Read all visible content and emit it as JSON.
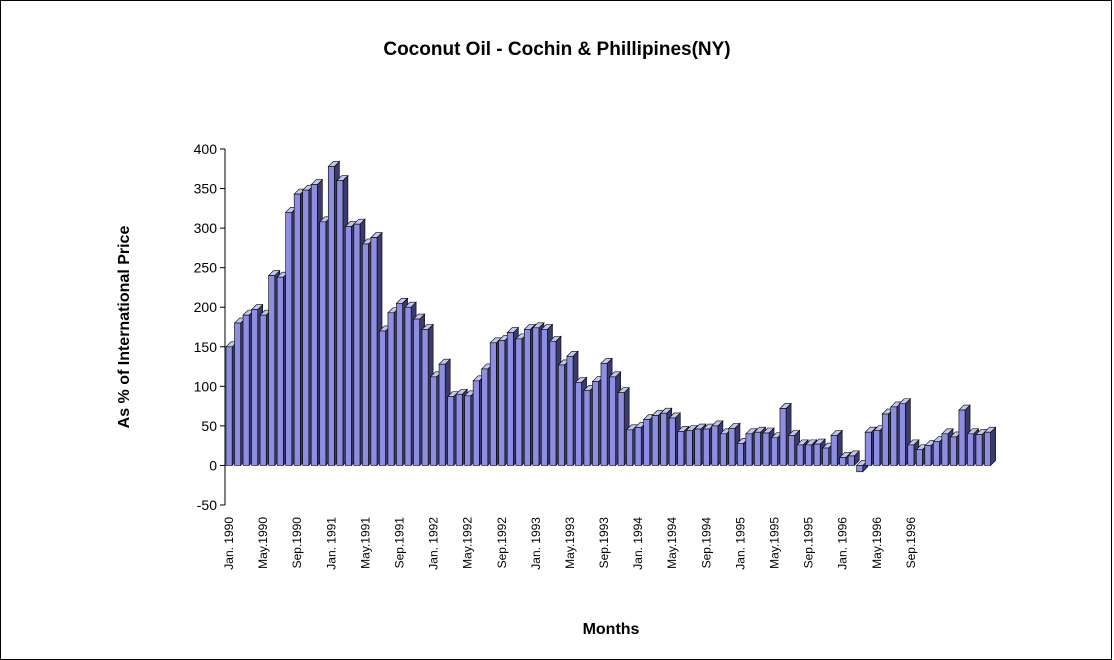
{
  "chart_data": {
    "type": "bar",
    "title": "Coconut Oil - Cochin & Phillipines(NY)",
    "xlabel": "Months",
    "ylabel": "As % of International Price",
    "ylim": [
      -50,
      400
    ],
    "yticks": [
      400,
      350,
      300,
      250,
      200,
      150,
      100,
      50,
      0,
      -50
    ],
    "grid": false,
    "legend": "none",
    "colors": {
      "bar_front": "#8E8EE0",
      "bar_side": "#3A3A6E",
      "bar_top": "#C4C4F0",
      "outline": "#000000"
    },
    "x_tick_labels": [
      "Jan. 1990",
      "May.1990",
      "Sep.1990",
      "Jan. 1991",
      "May.1991",
      "Sep.1991",
      "Jan. 1992",
      "May.1992",
      "Sep.1992",
      "Jan. 1993",
      "May.1993",
      "Sep.1993",
      "Jan. 1994",
      "May.1994",
      "Sep.1994",
      "Jan. 1995",
      "May.1995",
      "Sep.1995",
      "Jan. 1996",
      "May.1996",
      "Sep.1996"
    ],
    "months_start": "Jan. 1990",
    "values": [
      150,
      180,
      190,
      197,
      190,
      240,
      238,
      320,
      343,
      348,
      355,
      308,
      378,
      360,
      302,
      305,
      280,
      288,
      170,
      193,
      205,
      200,
      185,
      172,
      112,
      128,
      87,
      90,
      88,
      107,
      122,
      155,
      158,
      168,
      160,
      172,
      174,
      172,
      157,
      127,
      138,
      105,
      95,
      106,
      129,
      112,
      92,
      45,
      48,
      58,
      63,
      66,
      60,
      43,
      44,
      46,
      46,
      50,
      40,
      47,
      28,
      40,
      42,
      41,
      35,
      72,
      38,
      26,
      26,
      27,
      22,
      38,
      10,
      12,
      -8,
      42,
      44,
      65,
      74,
      78,
      26,
      20,
      25,
      30,
      40,
      36,
      70,
      40,
      39,
      42
    ]
  }
}
